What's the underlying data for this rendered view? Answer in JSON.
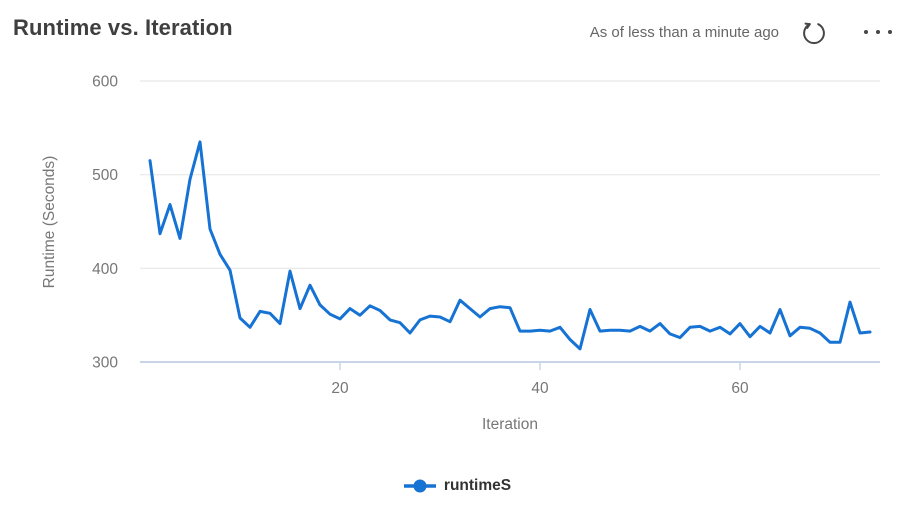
{
  "header": {
    "title": "Runtime vs. Iteration",
    "as_of_text": "As of less than a minute ago"
  },
  "icons": {
    "refresh": "refresh-icon",
    "more": "ellipsis-icon",
    "legend_marker": "line-with-dot-icon"
  },
  "colors": {
    "line": "#1673d4",
    "gridline": "#ebebeb",
    "axis_line": "#c9d4ea",
    "tick_text": "#777777",
    "title_text": "#3f3f3f",
    "status_text": "#666666",
    "icon": "#484644"
  },
  "legend": {
    "series_label": "runtimeS"
  },
  "chart_data": {
    "type": "line",
    "title": "Runtime vs. Iteration",
    "xlabel": "Iteration",
    "ylabel": "Runtime (Seconds)",
    "x_ticks": [
      20,
      40,
      60
    ],
    "y_ticks": [
      300,
      400,
      500,
      600
    ],
    "xlim": [
      0,
      74
    ],
    "ylim": [
      300,
      600
    ],
    "grid": "horizontal",
    "legend_position": "bottom",
    "series": [
      {
        "name": "runtimeS",
        "color": "#1673d4",
        "x_start": 1,
        "x_step": 1,
        "values": [
          515,
          437,
          468,
          432,
          495,
          535,
          442,
          415,
          398,
          347,
          337,
          354,
          352,
          341,
          397,
          357,
          382,
          361,
          351,
          346,
          357,
          350,
          360,
          355,
          345,
          342,
          331,
          345,
          349,
          348,
          343,
          366,
          357,
          348,
          357,
          359,
          358,
          333,
          333,
          334,
          333,
          337,
          324,
          314,
          356,
          333,
          334,
          334,
          333,
          338,
          333,
          341,
          330,
          326,
          337,
          338,
          333,
          337,
          330,
          341,
          327,
          338,
          331,
          356,
          328,
          337,
          336,
          331,
          321,
          321,
          364,
          331,
          332
        ]
      }
    ]
  }
}
